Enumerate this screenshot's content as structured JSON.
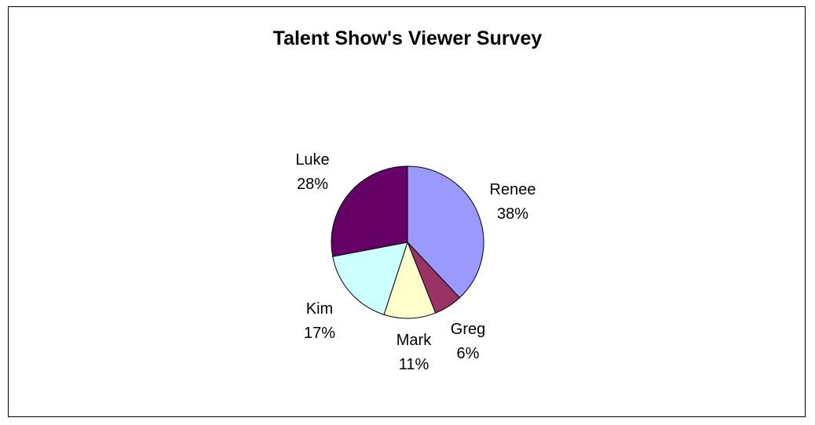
{
  "chart_data": {
    "type": "pie",
    "title": "Talent Show's Viewer Survey",
    "slices": [
      {
        "label": "Renee",
        "value": 38,
        "display": "38%",
        "color": "#9999ff"
      },
      {
        "label": "Greg",
        "value": 6,
        "display": "6%",
        "color": "#993366"
      },
      {
        "label": "Mark",
        "value": 11,
        "display": "11%",
        "color": "#ffffcc"
      },
      {
        "label": "Kim",
        "value": 17,
        "display": "17%",
        "color": "#ccffff"
      },
      {
        "label": "Luke",
        "value": 28,
        "display": "28%",
        "color": "#660066"
      }
    ],
    "start_angle": "12 o'clock",
    "direction": "clockwise",
    "legend": "none",
    "labels_show": [
      "category",
      "percentage"
    ]
  }
}
